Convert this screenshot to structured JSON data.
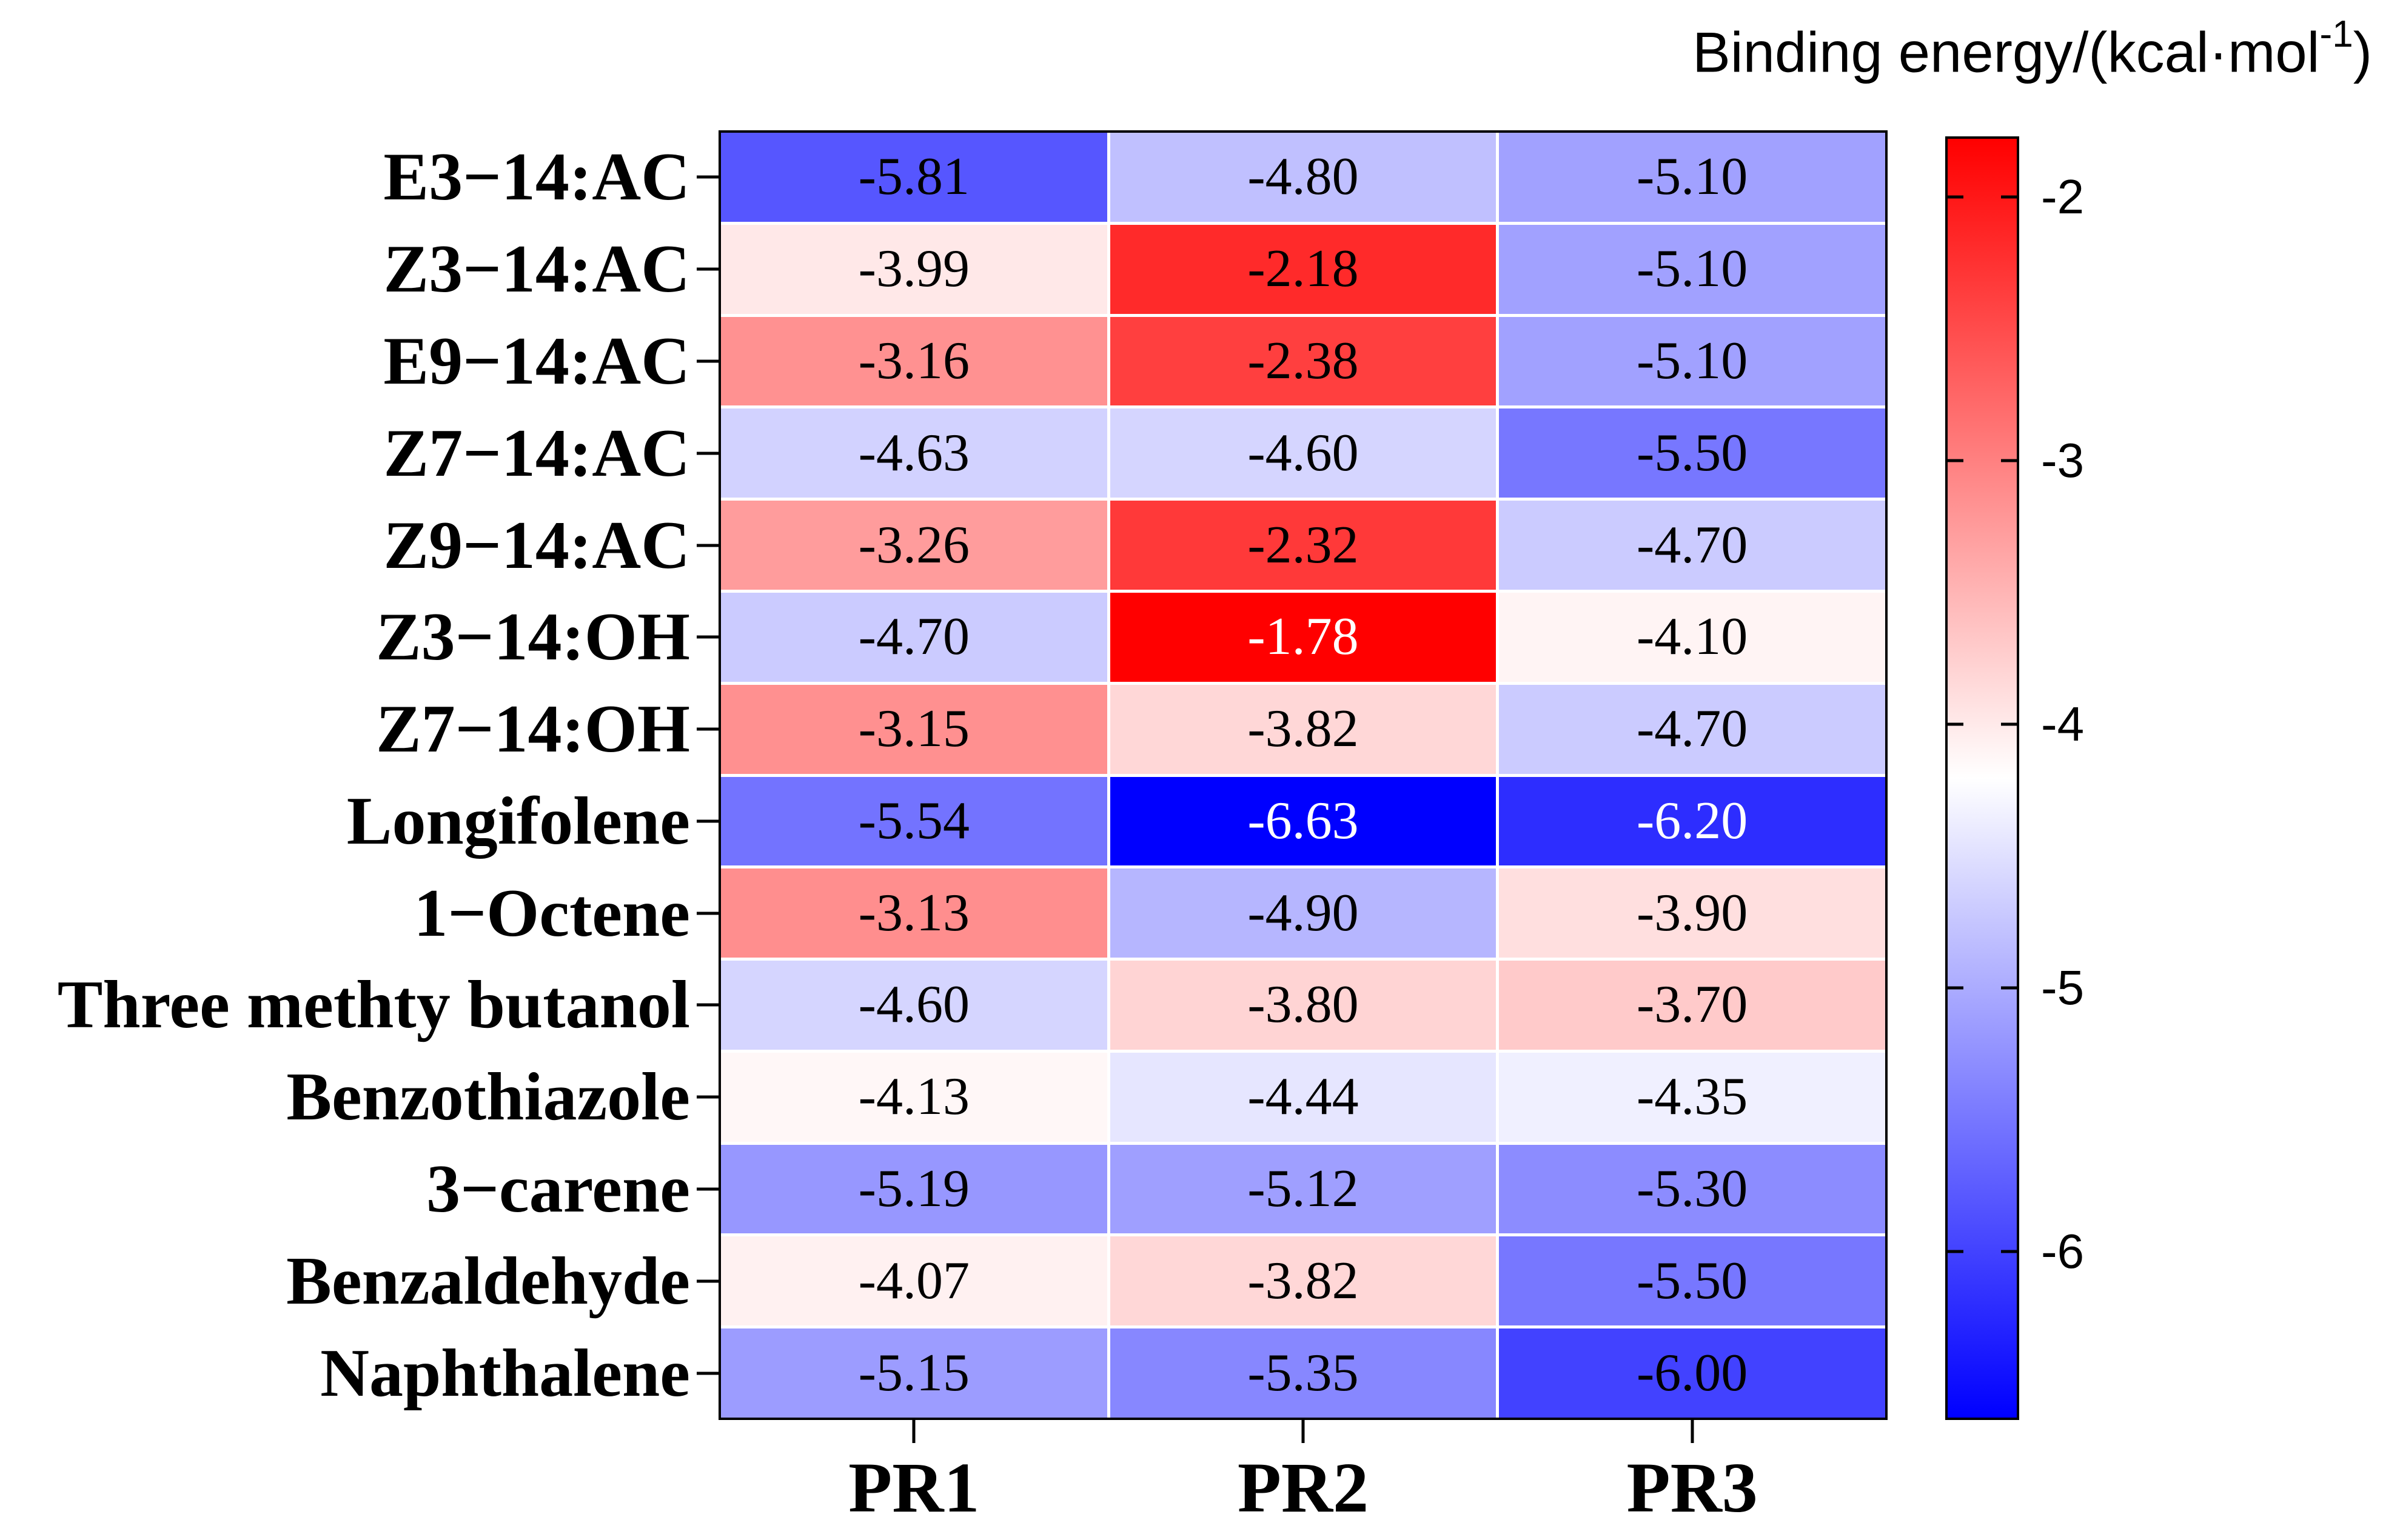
{
  "title": {
    "prefix": "Binding energy/(kcal·mol",
    "superscript": "-1",
    "suffix": ")"
  },
  "chart_data": {
    "type": "heatmap",
    "title": "Binding energy/(kcal·mol⁻¹)",
    "rows": [
      "E3−14:AC",
      "Z3−14:AC",
      "E9−14:AC",
      "Z7−14:AC",
      "Z9−14:AC",
      "Z3−14:OH",
      "Z7−14:OH",
      "Longifolene",
      "1−Octene",
      "Three methty butanol",
      "Benzothiazole",
      "3−carene",
      "Benzaldehyde",
      "Naphthalene"
    ],
    "columns": [
      "PR1",
      "PR2",
      "PR3"
    ],
    "values": [
      [
        -5.81,
        -4.8,
        -5.1
      ],
      [
        -3.99,
        -2.18,
        -5.1
      ],
      [
        -3.16,
        -2.38,
        -5.1
      ],
      [
        -4.63,
        -4.6,
        -5.5
      ],
      [
        -3.26,
        -2.32,
        -4.7
      ],
      [
        -4.7,
        -1.78,
        -4.1
      ],
      [
        -3.15,
        -3.82,
        -4.7
      ],
      [
        -5.54,
        -6.63,
        -6.2
      ],
      [
        -3.13,
        -4.9,
        -3.9
      ],
      [
        -4.6,
        -3.8,
        -3.7
      ],
      [
        -4.13,
        -4.44,
        -4.35
      ],
      [
        -5.19,
        -5.12,
        -5.3
      ],
      [
        -4.07,
        -3.82,
        -5.5
      ],
      [
        -5.15,
        -5.35,
        -6.0
      ]
    ],
    "value_decimals": 2,
    "colormap": {
      "type": "blue-white-red",
      "vmin": -6.63,
      "vmax": -1.78,
      "blue_hex": "#0000FF",
      "white_hex": "#FFFFFF",
      "red_hex": "#FF0000"
    },
    "colorbar": {
      "position": "right",
      "ticks": [
        -2,
        -3,
        -4,
        -5,
        -6
      ],
      "tick_labels": [
        "-2",
        "-3",
        "-4",
        "-5",
        "-6"
      ]
    },
    "grid_line_color": "#FFFFFF",
    "border_color": "#000000"
  }
}
